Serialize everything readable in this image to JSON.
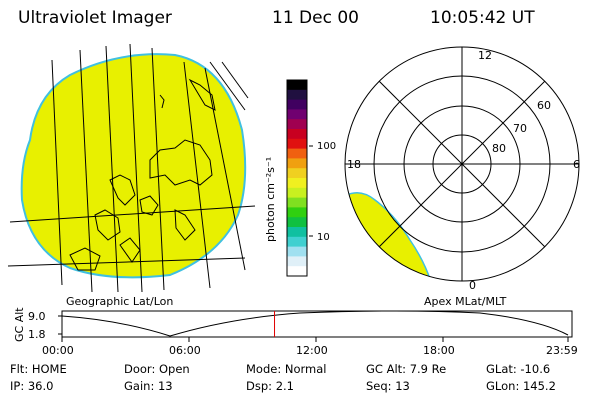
{
  "header": {
    "instrument": "Ultraviolet Imager",
    "date": "11 Dec 00",
    "time": "10:05:42 UT"
  },
  "colorbar": {
    "label": "photon cm⁻²s⁻¹",
    "ticks": [
      "100",
      "10"
    ],
    "colors": [
      "#000000",
      "#201040",
      "#400060",
      "#700070",
      "#a00050",
      "#c80020",
      "#e01010",
      "#f06010",
      "#f0a010",
      "#f0d020",
      "#f0f020",
      "#c8f020",
      "#80e020",
      "#30d010",
      "#10c040",
      "#10c0a0",
      "#40d0d0",
      "#a0e0f0",
      "#e0f0f8",
      "#ffffff"
    ]
  },
  "map_left": {
    "caption": "Geographic Lat/Lon",
    "fill_color": "#e8f000",
    "edge_color": "#40c0e0"
  },
  "polar_right": {
    "caption": "Apex MLat/MLT",
    "lat_labels": [
      "60",
      "70",
      "80"
    ],
    "mlt_labels": {
      "top": "12",
      "left": "18",
      "right": "6",
      "bottom": "0"
    }
  },
  "altitude_strip": {
    "axis_label": "GC Alt",
    "y_ticks": [
      "9.0",
      "1.8"
    ],
    "x_ticks": [
      "00:00",
      "06:00",
      "12:00",
      "18:00",
      "23:59"
    ],
    "current_fraction": 0.42,
    "marker_color": "#e00000"
  },
  "status": {
    "row1": [
      {
        "label": "Flt:",
        "value": "HOME"
      },
      {
        "label": "Door:",
        "value": "Open"
      },
      {
        "label": "Mode:",
        "value": "Normal"
      },
      {
        "label": "GC Alt:",
        "value": "7.9 Re"
      },
      {
        "label": "GLat:",
        "value": "-10.6"
      }
    ],
    "row2": [
      {
        "label": "IP:",
        "value": "36.0"
      },
      {
        "label": "Gain:",
        "value": "13"
      },
      {
        "label": "Dsp:",
        "value": "2.1"
      },
      {
        "label": "Seq:",
        "value": "13"
      },
      {
        "label": "GLon:",
        "value": "145.2"
      }
    ]
  }
}
